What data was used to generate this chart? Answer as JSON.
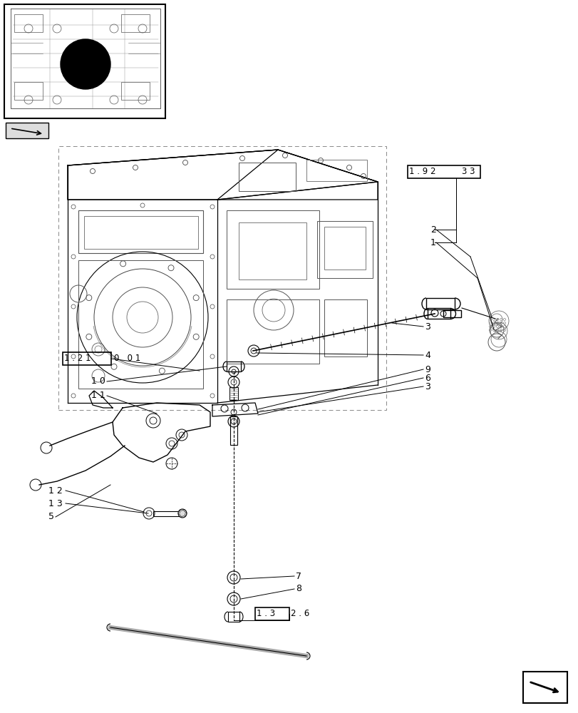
{
  "bg_color": "#ffffff",
  "line_color": "#000000",
  "fig_width": 8.12,
  "fig_height": 10.0,
  "dpi": 100,
  "labels": {
    "ref_box1": "1 . 2 1",
    "ref_box1_suffix": "0   0 1",
    "ref_box2": "1 . 9 2",
    "ref_box2b": "3 3",
    "ref_box3": "1 . 3",
    "ref_box3_suffix": "2 . 6"
  }
}
